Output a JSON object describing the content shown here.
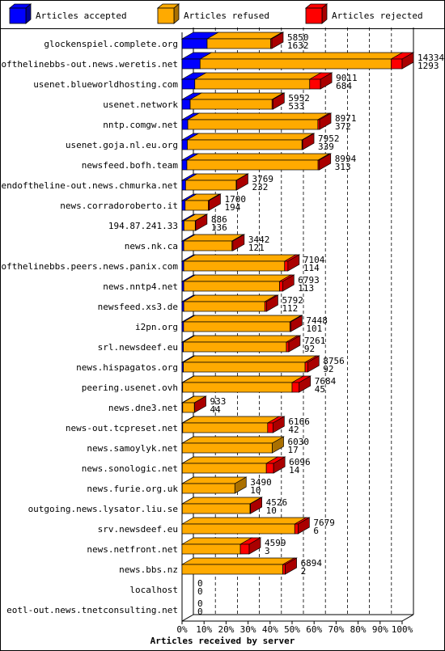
{
  "chart_data": {
    "type": "bar",
    "orientation": "horizontal",
    "stacked": true,
    "xlabel": "Articles received by server",
    "xlim_percent": [
      0,
      100
    ],
    "x_ticks": [
      "0%",
      "10%",
      "20%",
      "30%",
      "40%",
      "50%",
      "60%",
      "70%",
      "80%",
      "90%",
      "100%"
    ],
    "grid": "vertical dashed",
    "legend_position": "top",
    "legend": [
      {
        "label": "Articles accepted",
        "color": "#0000ff"
      },
      {
        "label": "Articles refused",
        "color": "#ffaa00"
      },
      {
        "label": "Articles rejected",
        "color": "#ff0000"
      }
    ],
    "categories": [
      "glockenspiel.complete.org",
      "endofthelinebbs-out.news.weretis.net",
      "usenet.blueworldhosting.com",
      "usenet.network",
      "nntp.comgw.net",
      "usenet.goja.nl.eu.org",
      "newsfeed.bofh.team",
      "endoftheline-out.news.chmurka.net",
      "news.corradoroberto.it",
      "194.87.241.33",
      "news.nk.ca",
      "endofthelinebbs.peers.news.panix.com",
      "news.nntp4.net",
      "newsfeed.xs3.de",
      "i2pn.org",
      "srl.newsdeef.eu",
      "news.hispagatos.org",
      "peering.usenet.ovh",
      "news.dne3.net",
      "news-out.tcpreset.net",
      "news.samoylyk.net",
      "news.sonologic.net",
      "news.furie.org.uk",
      "outgoing.news.lysator.liu.se",
      "srv.newsdeef.eu",
      "news.netfront.net",
      "news.bbs.nz",
      "localhost",
      "eotl-out.news.tnetconsulting.net"
    ],
    "totals": [
      5850,
      14334,
      9011,
      5952,
      8971,
      7952,
      8994,
      3769,
      1700,
      886,
      3442,
      7104,
      6793,
      5792,
      7448,
      7261,
      8756,
      7684,
      933,
      6166,
      6030,
      6096,
      3490,
      4526,
      7679,
      4599,
      6894,
      0,
      0
    ],
    "accepted": [
      1632,
      1293,
      684,
      533,
      372,
      339,
      313,
      232,
      194,
      136,
      121,
      114,
      113,
      112,
      101,
      92,
      92,
      45,
      44,
      42,
      17,
      14,
      10,
      10,
      6,
      3,
      2,
      0,
      0
    ],
    "series": [
      {
        "name": "Articles accepted",
        "values_percent": [
          11.4,
          8.2,
          5.8,
          3.7,
          2.6,
          2.4,
          2.2,
          1.6,
          1.4,
          0.9,
          0.8,
          0.8,
          0.8,
          0.8,
          0.7,
          0.6,
          0.6,
          0.3,
          0.3,
          0.3,
          0.1,
          0.1,
          0.1,
          0.1,
          0.0,
          0.0,
          0.0,
          0.0,
          0.0
        ]
      },
      {
        "name": "Articles refused",
        "values_percent": [
          28.9,
          86.8,
          52.2,
          37.2,
          59.1,
          52.1,
          59.6,
          23.0,
          10.5,
          5.1,
          21.9,
          45.8,
          43.5,
          36.8,
          48.3,
          46.8,
          55.3,
          49.7,
          5.3,
          38.6,
          40.9,
          38.2,
          23.9,
          30.8,
          51.2,
          26.5,
          45.8,
          0.0,
          0.0
        ]
      },
      {
        "name": "Articles rejected",
        "values_percent": [
          0.5,
          5.0,
          4.9,
          0.4,
          0.8,
          0.3,
          0.6,
          0.2,
          0.4,
          0.2,
          0.4,
          1.5,
          1.4,
          0.8,
          0.4,
          1.1,
          1.2,
          3.2,
          0.1,
          2.4,
          0.0,
          3.3,
          0.0,
          0.2,
          1.5,
          4.0,
          1.1,
          0.0,
          0.0
        ]
      }
    ]
  },
  "colors": {
    "accepted": "#0000ff",
    "accepted_side": "#000099",
    "refused": "#ffaa00",
    "refused_side": "#aa7000",
    "rejected": "#ff0000",
    "rejected_side": "#aa0000",
    "grid": "#000000",
    "border": "#000000"
  }
}
